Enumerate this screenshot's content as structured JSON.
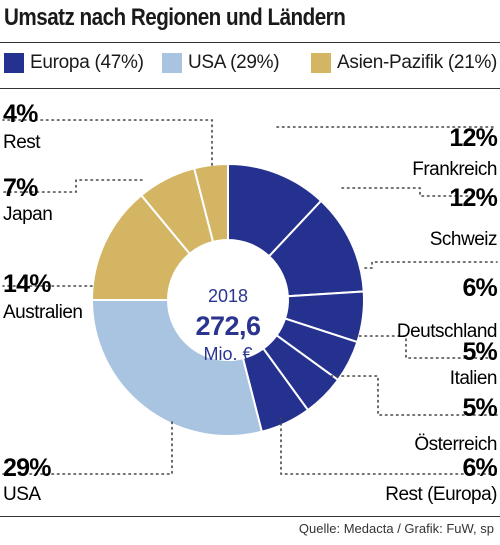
{
  "title": "Umsatz nach Regionen und Ländern",
  "legend": [
    {
      "label": "Europa (47%)",
      "color": "#25318e"
    },
    {
      "label": "USA (29%)",
      "color": "#a8c4e0"
    },
    {
      "label": "Asien-Pazifik (21%)",
      "color": "#d4b564"
    }
  ],
  "center": {
    "year": "2018",
    "total": "272,6",
    "unit": "Mio. €"
  },
  "chart_data": {
    "type": "pie",
    "variant": "donut",
    "title": "Umsatz nach Regionen und Ländern",
    "total": 272.6,
    "unit": "Mio. €",
    "year": "2018",
    "slices": [
      {
        "label": "Frankreich",
        "value": 12,
        "pct_label": "12%",
        "group": "Europa (47%)",
        "color": "#25318e"
      },
      {
        "label": "Schweiz",
        "value": 12,
        "pct_label": "12%",
        "group": "Europa (47%)",
        "color": "#25318e"
      },
      {
        "label": "Deutschland",
        "value": 6,
        "pct_label": "6%",
        "group": "Europa (47%)",
        "color": "#25318e"
      },
      {
        "label": "Italien",
        "value": 5,
        "pct_label": "5%",
        "group": "Europa (47%)",
        "color": "#25318e"
      },
      {
        "label": "Österreich",
        "value": 5,
        "pct_label": "5%",
        "group": "Europa (47%)",
        "color": "#25318e"
      },
      {
        "label": "Rest (Europa)",
        "value": 6,
        "pct_label": "6%",
        "group": "Europa (47%)",
        "color": "#25318e"
      },
      {
        "label": "USA",
        "value": 29,
        "pct_label": "29%",
        "group": "USA (29%)",
        "color": "#a8c4e0"
      },
      {
        "label": "Australien",
        "value": 14,
        "pct_label": "14%",
        "group": "Asien-Pazifik (21%)",
        "color": "#d4b564"
      },
      {
        "label": "Japan",
        "value": 7,
        "pct_label": "7%",
        "group": "Asien-Pazifik (21%)",
        "color": "#d4b564"
      },
      {
        "label": "Rest",
        "value": 4,
        "pct_label": "4%",
        "group": "Rest",
        "color": "#d4b564"
      }
    ]
  },
  "source": "Quelle: Medacta / Grafik: FuW, sp"
}
